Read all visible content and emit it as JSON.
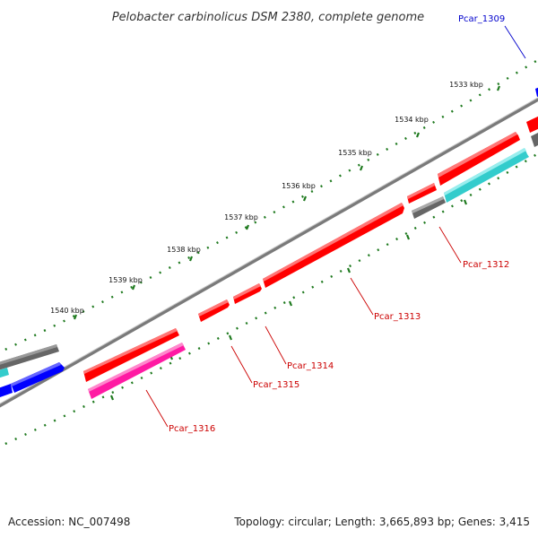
{
  "title": "Pelobacter carbinolicus DSM 2380, complete genome",
  "footer": {
    "accession": "Accession: NC_007498",
    "summary": "Topology: circular; Length: 3,665,893 bp; Genes: 3,415"
  },
  "ticks": [
    "1533 kbp",
    "1534 kbp",
    "1535 kbp",
    "1536 kbp",
    "1537 kbp",
    "1538 kbp",
    "1539 kbp",
    "1540 kbp"
  ],
  "genes": [
    {
      "name": "Pcar_1309",
      "color": "#0000cc"
    },
    {
      "name": "Pcar_1312",
      "color": "#cc0000"
    },
    {
      "name": "Pcar_1313",
      "color": "#cc0000"
    },
    {
      "name": "Pcar_1314",
      "color": "#cc0000"
    },
    {
      "name": "Pcar_1315",
      "color": "#cc0000"
    },
    {
      "name": "Pcar_1316",
      "color": "#cc0000"
    }
  ],
  "colors": {
    "cds_red": "#ff0000",
    "cds_pink": "#ff1aa3",
    "cds_cyan": "#33cccc",
    "cds_blue": "#0000ff",
    "cds_gray": "#666666",
    "backbone": "#7a7a7a",
    "tick_dots": "#1f7a1f"
  }
}
